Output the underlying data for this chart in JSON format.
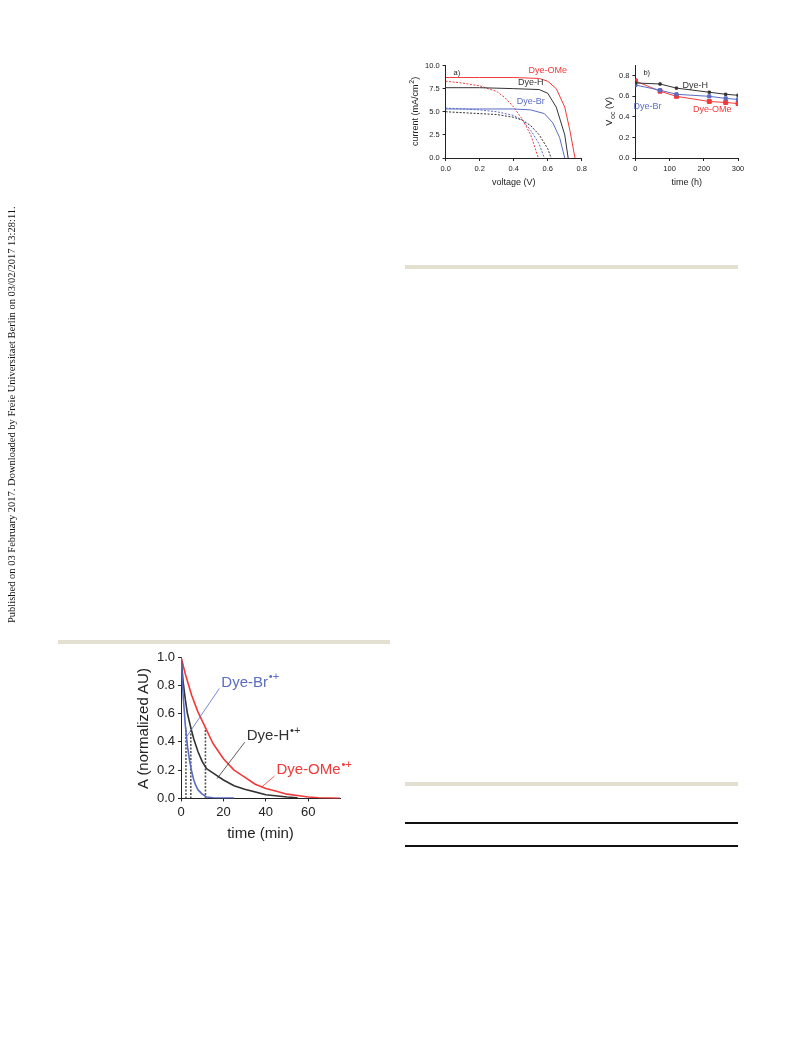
{
  "chart_data": [
    {
      "type": "line",
      "xlabel": "time (min)",
      "ylabel": "A (normalized AU)",
      "xlim": [
        0,
        75
      ],
      "xticks": [
        0,
        20,
        40,
        60
      ],
      "ylim": [
        0,
        1
      ],
      "yticks": [
        {
          "value": 0,
          "label": "0.0"
        },
        0.2,
        0.4,
        0.6,
        0.8,
        {
          "value": 1,
          "label": "1.0"
        }
      ],
      "annotations": [
        "Published on 03 February 2017. Downloaded by Freie Universitaet Berlin on 03/02/2017 13:28:11."
      ],
      "series": [
        {
          "name": "Dye-Br$^{•+}$",
          "color": "#5a6cc4",
          "x": [
            0,
            1,
            2,
            3,
            4,
            5,
            6,
            7,
            8,
            10,
            12,
            15,
            20,
            25
          ],
          "values": [
            1,
            0.72,
            0.52,
            0.37,
            0.27,
            0.19,
            0.13,
            0.09,
            0.06,
            0.03,
            0.01,
            0.005,
            0.003,
            0.003
          ]
        },
        {
          "name": "Dye-H$^{•+}$",
          "color": "#333333",
          "x": [
            0,
            1,
            2,
            3,
            4.6,
            6,
            8,
            10,
            12,
            15,
            20,
            25,
            30,
            40,
            50,
            55
          ],
          "values": [
            1,
            0.82,
            0.7,
            0.6,
            0.5,
            0.42,
            0.33,
            0.26,
            0.21,
            0.18,
            0.13,
            0.09,
            0.065,
            0.026,
            0.01,
            0.005
          ]
        },
        {
          "name": "Dye-OMe$^{•+}$",
          "color": "#f03a3a",
          "x": [
            0,
            2,
            5,
            8,
            11.5,
            15,
            20,
            25,
            30,
            35,
            40,
            45,
            50,
            55,
            60,
            65,
            70,
            75
          ],
          "values": [
            1,
            0.88,
            0.73,
            0.61,
            0.5,
            0.39,
            0.28,
            0.2,
            0.15,
            0.1,
            0.07,
            0.05,
            0.03,
            0.02,
            0.01,
            0.005,
            0.002,
            0
          ]
        },
        {
          "color": "#555555",
          "line_style": "dashed",
          "x": [
            2.3,
            2.3
          ],
          "values": [
            0,
            0.5
          ]
        },
        {
          "color": "#555555",
          "line_style": "dashed",
          "x": [
            4.6,
            4.6
          ],
          "values": [
            0,
            0.5
          ]
        },
        {
          "color": "#555555",
          "line_style": "dashed",
          "x": [
            11.5,
            11.5
          ],
          "values": [
            0,
            0.5
          ]
        }
      ]
    },
    {
      "type": "line",
      "title": "a)",
      "xlabel": "voltage (V)",
      "ylabel": "current (mA/cm$^{2}$)",
      "xlim": [
        0,
        0.8
      ],
      "xticks": [
        {
          "value": 0,
          "label": "0.0"
        },
        0.2,
        0.4,
        0.6,
        0.8
      ],
      "ylim": [
        0,
        10
      ],
      "yticks": [
        {
          "value": 0,
          "label": "0.0"
        },
        2.5,
        {
          "value": 5,
          "label": "5.0"
        },
        7.5,
        {
          "value": 10,
          "label": "10.0"
        }
      ],
      "series": [
        {
          "name": "Dye-OMe",
          "color": "#f03a3a",
          "x": [
            0,
            0.2,
            0.4,
            0.55,
            0.6,
            0.65,
            0.7,
            0.73,
            0.76
          ],
          "values": [
            8.7,
            8.7,
            8.7,
            8.6,
            8.3,
            7.5,
            5.5,
            3,
            0
          ]
        },
        {
          "name": "Dye-H",
          "color": "#333333",
          "x": [
            0,
            0.2,
            0.4,
            0.55,
            0.6,
            0.65,
            0.7,
            0.72
          ],
          "values": [
            7.6,
            7.6,
            7.5,
            7.4,
            7,
            5.5,
            2.5,
            0
          ]
        },
        {
          "name": "Dye-Br",
          "color": "#5a6cc4",
          "x": [
            0,
            0.2,
            0.4,
            0.5,
            0.58,
            0.63,
            0.67,
            0.7
          ],
          "values": [
            5.3,
            5.3,
            5.3,
            5.2,
            4.8,
            3.8,
            2.2,
            0
          ]
        },
        {
          "color": "#f03a3a",
          "line_style": "dashed",
          "x": [
            0,
            0.1,
            0.2,
            0.3,
            0.35,
            0.4,
            0.45,
            0.5,
            0.545
          ],
          "values": [
            8.3,
            8.1,
            7.8,
            7.2,
            6.5,
            5.5,
            4.2,
            2.5,
            0
          ]
        },
        {
          "color": "#333333",
          "line_style": "dashed",
          "x": [
            0,
            0.2,
            0.3,
            0.4,
            0.45,
            0.5,
            0.55,
            0.6,
            0.62
          ],
          "values": [
            5,
            4.8,
            4.7,
            4.4,
            4.1,
            3.5,
            2.5,
            1,
            0
          ]
        },
        {
          "color": "#5a6cc4",
          "line_style": "dashed",
          "x": [
            0,
            0.2,
            0.3,
            0.4,
            0.45,
            0.5,
            0.55,
            0.58
          ],
          "values": [
            5.4,
            5.2,
            5,
            4.6,
            4.1,
            3,
            1.5,
            0
          ]
        }
      ]
    },
    {
      "type": "line",
      "title": "b)",
      "xlabel": "time (h)",
      "ylabel": "V$_{oc}$ (V)",
      "xlim": [
        0,
        300
      ],
      "xticks": [
        0,
        100,
        200,
        300
      ],
      "ylim": [
        0,
        0.9
      ],
      "yticks": [
        {
          "value": 0,
          "label": "0.0"
        },
        0.2,
        0.4,
        0.6,
        0.8
      ],
      "marker": "square",
      "series": [
        {
          "name": "Dye-H",
          "color": "#333333",
          "x": [
            0,
            72,
            120,
            216,
            264,
            300
          ],
          "values": [
            0.73,
            0.72,
            0.68,
            0.64,
            0.62,
            0.61
          ]
        },
        {
          "name": "Dye-Br",
          "color": "#5a6cc4",
          "x": [
            0,
            72,
            120,
            216,
            264,
            300
          ],
          "values": [
            0.71,
            0.66,
            0.62,
            0.6,
            0.58,
            0.57
          ]
        },
        {
          "name": "Dye-OMe",
          "color": "#f03a3a",
          "x": [
            0,
            72,
            120,
            216,
            264,
            300
          ],
          "values": [
            0.75,
            0.65,
            0.6,
            0.55,
            0.54,
            0.53
          ]
        }
      ]
    }
  ]
}
